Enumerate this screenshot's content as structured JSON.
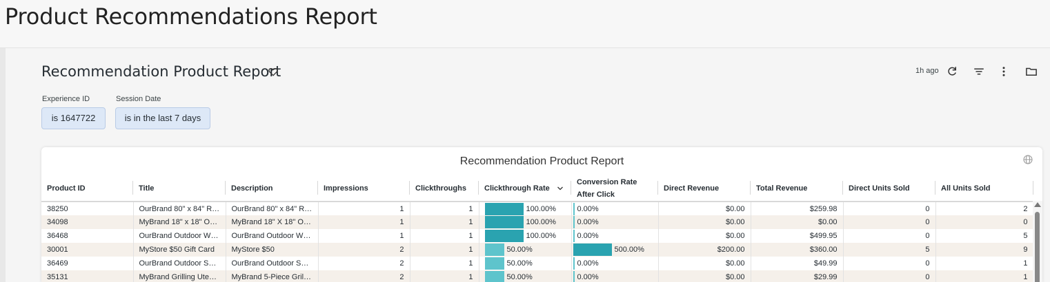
{
  "page": {
    "title": "Product Recommendations Report"
  },
  "tile": {
    "title": "Recommendation Product Report",
    "updated": "1h ago"
  },
  "filters": [
    {
      "label": "Experience ID",
      "value": "is 1647722"
    },
    {
      "label": "Session Date",
      "value": "is in the last 7 days"
    }
  ],
  "report": {
    "title": "Recommendation Product Report",
    "columns": [
      "Product ID",
      "Title",
      "Description",
      "Impressions",
      "Clickthroughs",
      "Clickthrough Rate",
      "Conversion Rate After Click",
      "Direct Revenue",
      "Total Revenue",
      "Direct Units Sold",
      "All Units Sold"
    ],
    "rows": [
      {
        "id": "38250",
        "title": "OurBrand 80\" x 84\" Ra...",
        "desc": "OurBrand 80\" x 84\" Ra...",
        "impressions": "1",
        "clicks": "1",
        "ctr": "100.00%",
        "ctr_pct": 100,
        "conv": "0.00%",
        "conv_pct": 0,
        "direct_rev": "$0.00",
        "total_rev": "$259.98",
        "direct_units": "0",
        "all_units": "2"
      },
      {
        "id": "34098",
        "title": "MyBrand 18\" x 18\" Out...",
        "desc": "MyBrand 18\" X 18\" Out...",
        "impressions": "1",
        "clicks": "1",
        "ctr": "100.00%",
        "ctr_pct": 100,
        "conv": "0.00%",
        "conv_pct": 0,
        "direct_rev": "$0.00",
        "total_rev": "$0.00",
        "direct_units": "0",
        "all_units": "0"
      },
      {
        "id": "36468",
        "title": "OurBrand Outdoor Wir...",
        "desc": "OurBrand Outdoor Wir...",
        "impressions": "1",
        "clicks": "1",
        "ctr": "100.00%",
        "ctr_pct": 100,
        "conv": "0.00%",
        "conv_pct": 0,
        "direct_rev": "$0.00",
        "total_rev": "$499.95",
        "direct_units": "0",
        "all_units": "5"
      },
      {
        "id": "30001",
        "title": "MyStore $50 Gift Card",
        "desc": "MyStore $50",
        "impressions": "2",
        "clicks": "1",
        "ctr": "50.00%",
        "ctr_pct": 50,
        "conv": "500.00%",
        "conv_pct": 500,
        "direct_rev": "$200.00",
        "total_rev": "$360.00",
        "direct_units": "5",
        "all_units": "9"
      },
      {
        "id": "36469",
        "title": "OurBrand Outdoor Spe...",
        "desc": "OurBrand Outdoor Spe...",
        "impressions": "2",
        "clicks": "1",
        "ctr": "50.00%",
        "ctr_pct": 50,
        "conv": "0.00%",
        "conv_pct": 0,
        "direct_rev": "$0.00",
        "total_rev": "$49.99",
        "direct_units": "0",
        "all_units": "1"
      },
      {
        "id": "35131",
        "title": "MyBrand Grilling Utens...",
        "desc": "MyBrand 5-Piece Grilli...",
        "impressions": "2",
        "clicks": "1",
        "ctr": "50.00%",
        "ctr_pct": 50,
        "conv": "0.00%",
        "conv_pct": 0,
        "direct_rev": "$0.00",
        "total_rev": "$29.99",
        "direct_units": "0",
        "all_units": "1"
      }
    ]
  },
  "colors": {
    "bar_dark": "#2aa3b0",
    "bar_light": "#5ec4cc"
  }
}
